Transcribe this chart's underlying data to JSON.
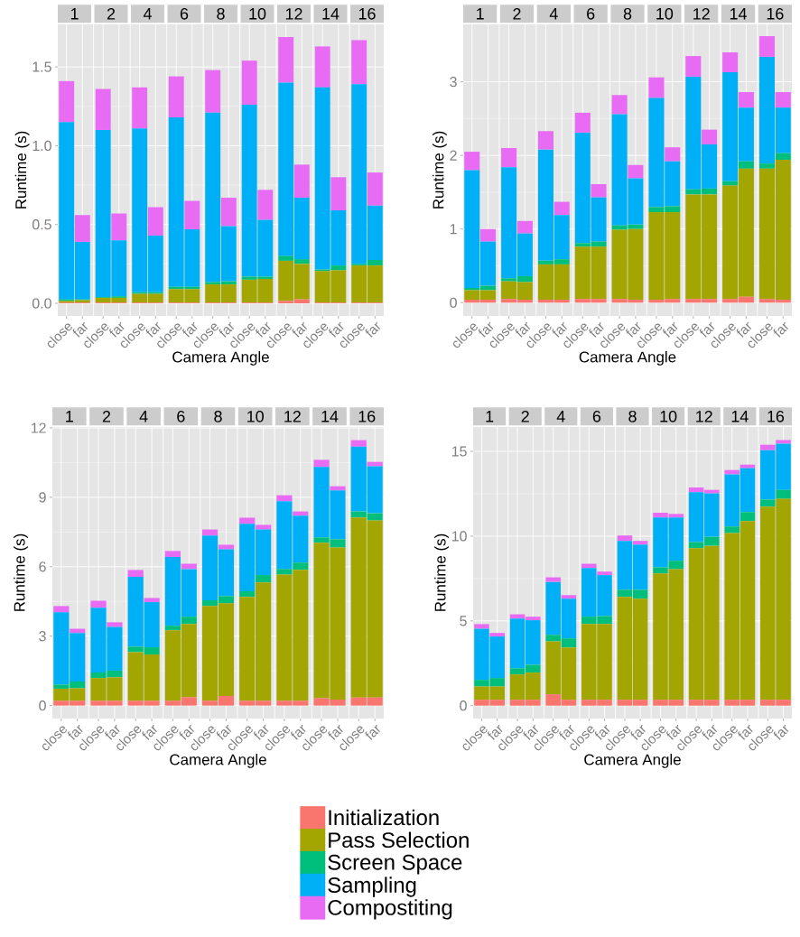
{
  "chart_data": [
    {
      "type": "bar",
      "stacked": true,
      "grid": true,
      "xlabel": "Camera Angle",
      "ylabel": "Runtime (s)",
      "annotations": [
        "1",
        "2",
        "4",
        "6",
        "8",
        "10",
        "12",
        "14",
        "16"
      ],
      "categories": [
        "close",
        "far",
        "close",
        "far",
        "close",
        "far",
        "close",
        "far",
        "close",
        "far",
        "close",
        "far",
        "close",
        "far",
        "close",
        "far",
        "close",
        "far"
      ],
      "ylim": [
        -0.08,
        1.77
      ],
      "yticks": [
        {
          "value": 0,
          "label": "0.0"
        },
        {
          "value": 0.5,
          "label": "0.5"
        },
        {
          "value": 1,
          "label": "1.0"
        },
        {
          "value": 1.5,
          "label": "1.5"
        }
      ],
      "series": [
        {
          "color": "#f8766d",
          "values": [
            0.005,
            0.005,
            0.005,
            0.005,
            0.005,
            0.005,
            0.005,
            0.005,
            0.005,
            0.005,
            0.005,
            0.005,
            0.015,
            0.025,
            0.005,
            0.005,
            0.005,
            0.005
          ]
        },
        {
          "color": "#a3a500",
          "values": [
            0.01,
            0.015,
            0.03,
            0.03,
            0.055,
            0.055,
            0.085,
            0.085,
            0.115,
            0.115,
            0.145,
            0.15,
            0.255,
            0.225,
            0.2,
            0.205,
            0.235,
            0.235
          ]
        },
        {
          "color": "#00bf7d",
          "values": [
            0.01,
            0.005,
            0.005,
            0.01,
            0.01,
            0.01,
            0.015,
            0.015,
            0.015,
            0.02,
            0.02,
            0.015,
            0.03,
            0.03,
            0.01,
            0.03,
            0.01,
            0.035
          ]
        },
        {
          "color": "#00b0f6",
          "values": [
            1.125,
            0.365,
            1.06,
            0.355,
            1.04,
            0.36,
            1.075,
            0.365,
            1.075,
            0.35,
            1.09,
            0.36,
            1.1,
            0.39,
            1.155,
            0.35,
            1.14,
            0.345
          ]
        },
        {
          "color": "#e76bf3",
          "values": [
            0.26,
            0.17,
            0.26,
            0.17,
            0.26,
            0.18,
            0.26,
            0.18,
            0.27,
            0.18,
            0.28,
            0.19,
            0.29,
            0.21,
            0.26,
            0.21,
            0.28,
            0.21
          ]
        }
      ]
    },
    {
      "type": "bar",
      "stacked": true,
      "grid": true,
      "xlabel": "Camera Angle",
      "ylabel": "Runtime (s)",
      "annotations": [
        "1",
        "2",
        "4",
        "6",
        "8",
        "10",
        "12",
        "14",
        "16"
      ],
      "categories": [
        "close",
        "far",
        "close",
        "far",
        "close",
        "far",
        "close",
        "far",
        "close",
        "far",
        "close",
        "far",
        "close",
        "far",
        "close",
        "far",
        "close",
        "far"
      ],
      "ylim": [
        -0.18,
        3.78
      ],
      "yticks": [
        0,
        1,
        2,
        3
      ],
      "series": [
        {
          "color": "#f8766d",
          "values": [
            0.04,
            0.04,
            0.05,
            0.04,
            0.04,
            0.04,
            0.05,
            0.05,
            0.05,
            0.04,
            0.04,
            0.05,
            0.05,
            0.05,
            0.05,
            0.08,
            0.05,
            0.04
          ]
        },
        {
          "color": "#a3a500",
          "values": [
            0.13,
            0.13,
            0.24,
            0.24,
            0.48,
            0.48,
            0.71,
            0.71,
            0.94,
            0.96,
            1.19,
            1.18,
            1.42,
            1.42,
            1.54,
            1.74,
            1.77,
            1.9
          ]
        },
        {
          "color": "#00bf7d",
          "values": [
            0.03,
            0.06,
            0.04,
            0.08,
            0.05,
            0.07,
            0.05,
            0.07,
            0.06,
            0.06,
            0.07,
            0.08,
            0.07,
            0.08,
            0.06,
            0.1,
            0.07,
            0.09
          ]
        },
        {
          "color": "#00b0f6",
          "values": [
            1.6,
            0.6,
            1.51,
            0.58,
            1.51,
            0.6,
            1.5,
            0.6,
            1.51,
            0.63,
            1.48,
            0.61,
            1.53,
            0.6,
            1.48,
            0.73,
            1.45,
            0.62
          ]
        },
        {
          "color": "#e76bf3",
          "values": [
            0.25,
            0.17,
            0.26,
            0.17,
            0.25,
            0.18,
            0.27,
            0.18,
            0.26,
            0.18,
            0.28,
            0.19,
            0.28,
            0.2,
            0.27,
            0.21,
            0.28,
            0.21
          ]
        }
      ]
    },
    {
      "type": "bar",
      "stacked": true,
      "grid": true,
      "xlabel": "Camera Angle",
      "ylabel": "Runtime (s)",
      "legend": "bottom",
      "annotations": [
        "1",
        "2",
        "4",
        "6",
        "8",
        "10",
        "12",
        "14",
        "16"
      ],
      "categories": [
        "close",
        "far",
        "close",
        "far",
        "close",
        "far",
        "close",
        "far",
        "close",
        "far",
        "close",
        "far",
        "close",
        "far",
        "close",
        "far",
        "close",
        "far"
      ],
      "ylim": [
        -0.56,
        12.04
      ],
      "yticks": [
        0,
        3,
        6,
        9,
        12
      ],
      "series": [
        {
          "name": "Initialization",
          "color": "#f8766d",
          "values": [
            0.21,
            0.21,
            0.21,
            0.21,
            0.21,
            0.21,
            0.21,
            0.36,
            0.21,
            0.42,
            0.21,
            0.21,
            0.21,
            0.21,
            0.32,
            0.26,
            0.35,
            0.35
          ]
        },
        {
          "name": "Pass Selection",
          "color": "#a3a500",
          "values": [
            0.52,
            0.54,
            0.98,
            1.01,
            2.1,
            2.0,
            3.04,
            3.17,
            4.1,
            4.0,
            4.49,
            5.11,
            5.45,
            5.66,
            6.72,
            6.57,
            7.78,
            7.65
          ]
        },
        {
          "name": "Screen Space",
          "color": "#00bf7d",
          "values": [
            0.18,
            0.29,
            0.24,
            0.29,
            0.24,
            0.31,
            0.2,
            0.31,
            0.24,
            0.31,
            0.24,
            0.32,
            0.24,
            0.31,
            0.23,
            0.36,
            0.26,
            0.31
          ]
        },
        {
          "name": "Sampling",
          "color": "#00b0f6",
          "values": [
            3.12,
            2.1,
            2.8,
            1.89,
            3.01,
            1.95,
            2.97,
            2.06,
            2.8,
            2.02,
            2.92,
            1.97,
            2.93,
            2.03,
            3.04,
            2.11,
            2.8,
            2.03
          ]
        },
        {
          "name": "Compostiting",
          "color": "#e76bf3",
          "values": [
            0.27,
            0.18,
            0.3,
            0.2,
            0.3,
            0.18,
            0.26,
            0.23,
            0.26,
            0.2,
            0.26,
            0.2,
            0.26,
            0.18,
            0.31,
            0.18,
            0.28,
            0.19
          ]
        }
      ]
    },
    {
      "type": "bar",
      "stacked": true,
      "grid": true,
      "xlabel": "Camera Angle",
      "ylabel": "Runtime (s)",
      "annotations": [
        "1",
        "2",
        "4",
        "6",
        "8",
        "10",
        "12",
        "14",
        "16"
      ],
      "categories": [
        "close",
        "far",
        "close",
        "far",
        "close",
        "far",
        "close",
        "far",
        "close",
        "far",
        "close",
        "far",
        "close",
        "far",
        "close",
        "far",
        "close",
        "far"
      ],
      "ylim": [
        -0.76,
        16.44
      ],
      "yticks": [
        0,
        5,
        10,
        15
      ],
      "series": [
        {
          "color": "#f8766d",
          "values": [
            0.35,
            0.35,
            0.35,
            0.35,
            0.67,
            0.35,
            0.35,
            0.35,
            0.35,
            0.35,
            0.35,
            0.35,
            0.35,
            0.35,
            0.35,
            0.35,
            0.35,
            0.35
          ]
        },
        {
          "color": "#a3a500",
          "values": [
            0.78,
            0.78,
            1.49,
            1.6,
            3.12,
            3.09,
            4.47,
            4.47,
            6.07,
            5.96,
            7.45,
            7.7,
            8.94,
            9.08,
            9.83,
            10.54,
            11.39,
            11.85
          ]
        },
        {
          "color": "#00bf7d",
          "values": [
            0.39,
            0.5,
            0.36,
            0.46,
            0.39,
            0.53,
            0.43,
            0.46,
            0.42,
            0.53,
            0.36,
            0.5,
            0.36,
            0.53,
            0.39,
            0.53,
            0.42,
            0.53
          ]
        },
        {
          "color": "#00b0f6",
          "values": [
            3.02,
            2.45,
            2.94,
            2.63,
            3.12,
            2.34,
            2.87,
            2.42,
            2.88,
            2.66,
            2.94,
            2.55,
            2.94,
            2.56,
            3.08,
            2.59,
            2.91,
            2.73
          ]
        },
        {
          "color": "#e76bf3",
          "values": [
            0.27,
            0.21,
            0.25,
            0.21,
            0.27,
            0.21,
            0.25,
            0.21,
            0.32,
            0.22,
            0.28,
            0.21,
            0.28,
            0.21,
            0.25,
            0.21,
            0.32,
            0.21
          ]
        }
      ]
    }
  ]
}
